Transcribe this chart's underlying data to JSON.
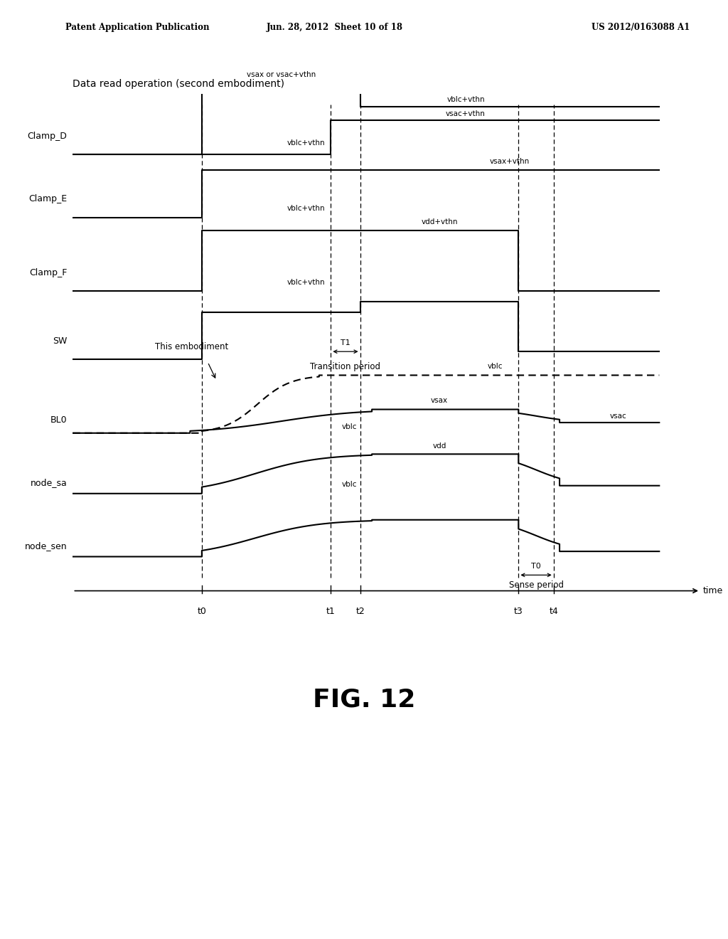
{
  "title": "Data read operation (second embodiment)",
  "fig_label": "FIG. 12",
  "header_left": "Patent Application Publication",
  "header_mid": "Jun. 28, 2012  Sheet 10 of 18",
  "header_right": "US 2012/0163088 A1",
  "background_color": "#ffffff",
  "time_points": {
    "t0": 0.22,
    "t1": 0.44,
    "t2": 0.49,
    "t3": 0.76,
    "t4": 0.82,
    "tend": 1.0
  },
  "signal_labels": [
    "Clamp_D",
    "Clamp_E",
    "Clamp_F",
    "SW",
    "BL0",
    "node_sa",
    "node_sen"
  ],
  "clamp_d_labels": {
    "high1": "vsax or vsac+vthn",
    "high2": "vblc+vthn",
    "after_t2_top": "vblc+vthn",
    "after_t2_bot": "vsac+vthn"
  },
  "clamp_e_labels": {
    "low": "vblc+vthn",
    "high": "vsax+vthn"
  },
  "clamp_f_labels": {
    "low": "vblc+vthn",
    "high": "vdd+vthn"
  },
  "bl0_labels": {
    "upper": "vblc",
    "mid": "vsax",
    "lower": "vblc",
    "end": "vsac"
  },
  "sa_labels": {
    "low": "vblc",
    "high": "vdd"
  },
  "annotations": {
    "T1": "T1",
    "transition": "Transition period",
    "T0": "T0",
    "sense": "Sense period",
    "embodiment": "This embodiment"
  }
}
